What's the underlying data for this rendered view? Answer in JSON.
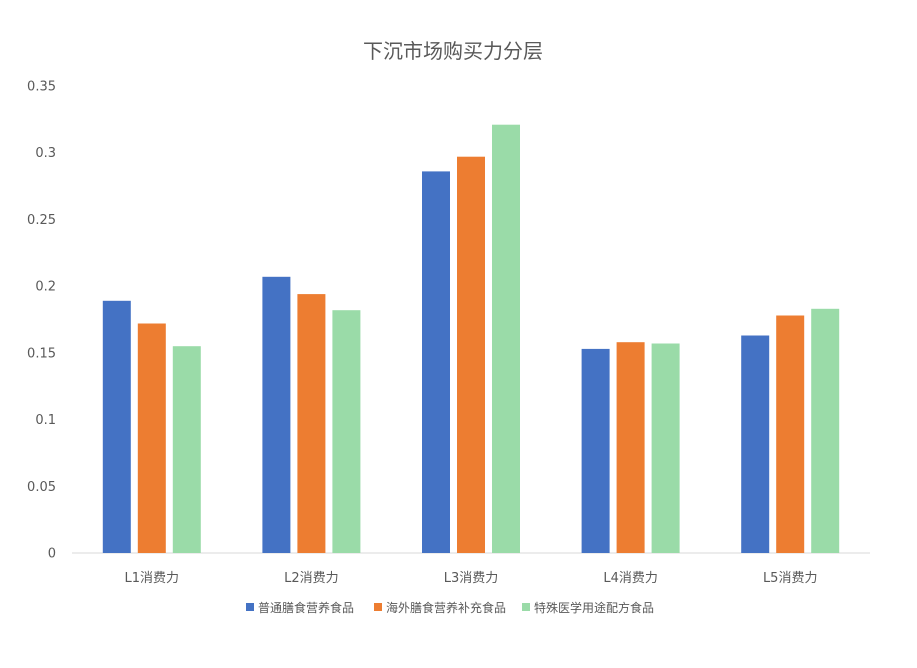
{
  "chart_data": {
    "type": "bar",
    "title": "下沉市场购买力分层",
    "xlabel": "",
    "ylabel": "",
    "ylim": [
      0,
      0.35
    ],
    "yticks": [
      "0",
      "0.05",
      "0.1",
      "0.15",
      "0.2",
      "0.25",
      "0.3",
      "0.35"
    ],
    "categories": [
      "L1消费力",
      "L2消费力",
      "L3消费力",
      "L4消费力",
      "L5消费力"
    ],
    "series": [
      {
        "name": "普通膳食营养食品",
        "color": "#4472C4",
        "values": [
          0.189,
          0.207,
          0.286,
          0.153,
          0.163
        ]
      },
      {
        "name": "海外膳食营养补充食品",
        "color": "#ED7D31",
        "values": [
          0.172,
          0.194,
          0.297,
          0.158,
          0.178
        ]
      },
      {
        "name": "特殊医学用途配方食品",
        "color": "#9ADBA8",
        "values": [
          0.155,
          0.182,
          0.321,
          0.157,
          0.183
        ]
      }
    ],
    "grid": false,
    "legend_position": "bottom"
  }
}
